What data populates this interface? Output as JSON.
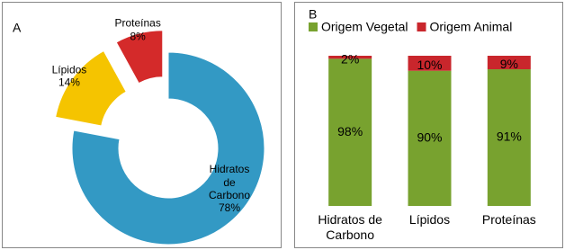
{
  "chart_data": [
    {
      "type": "pie",
      "title": "A",
      "donut": true,
      "categories": [
        "Hidratos de Carbono",
        "Lípidos",
        "Proteínas"
      ],
      "values": [
        78,
        14,
        8
      ],
      "value_labels": [
        "78%",
        "14%",
        "8%"
      ],
      "colors": [
        "#3399c4",
        "#f5c400",
        "#d42a2a"
      ]
    },
    {
      "type": "bar",
      "title": "B",
      "stacked": true,
      "categories": [
        "Hidratos de Carbono",
        "Lípidos",
        "Proteínas"
      ],
      "ylim": [
        0,
        100
      ],
      "series": [
        {
          "name": "Origem Vegetal",
          "color": "#78a22f",
          "values": [
            98,
            90,
            91
          ],
          "value_labels": [
            "98%",
            "90%",
            "91%"
          ]
        },
        {
          "name": "Origem Animal",
          "color": "#c9262c",
          "values": [
            2,
            10,
            9
          ],
          "value_labels": [
            "2%",
            "10%",
            "9%"
          ]
        }
      ]
    }
  ]
}
